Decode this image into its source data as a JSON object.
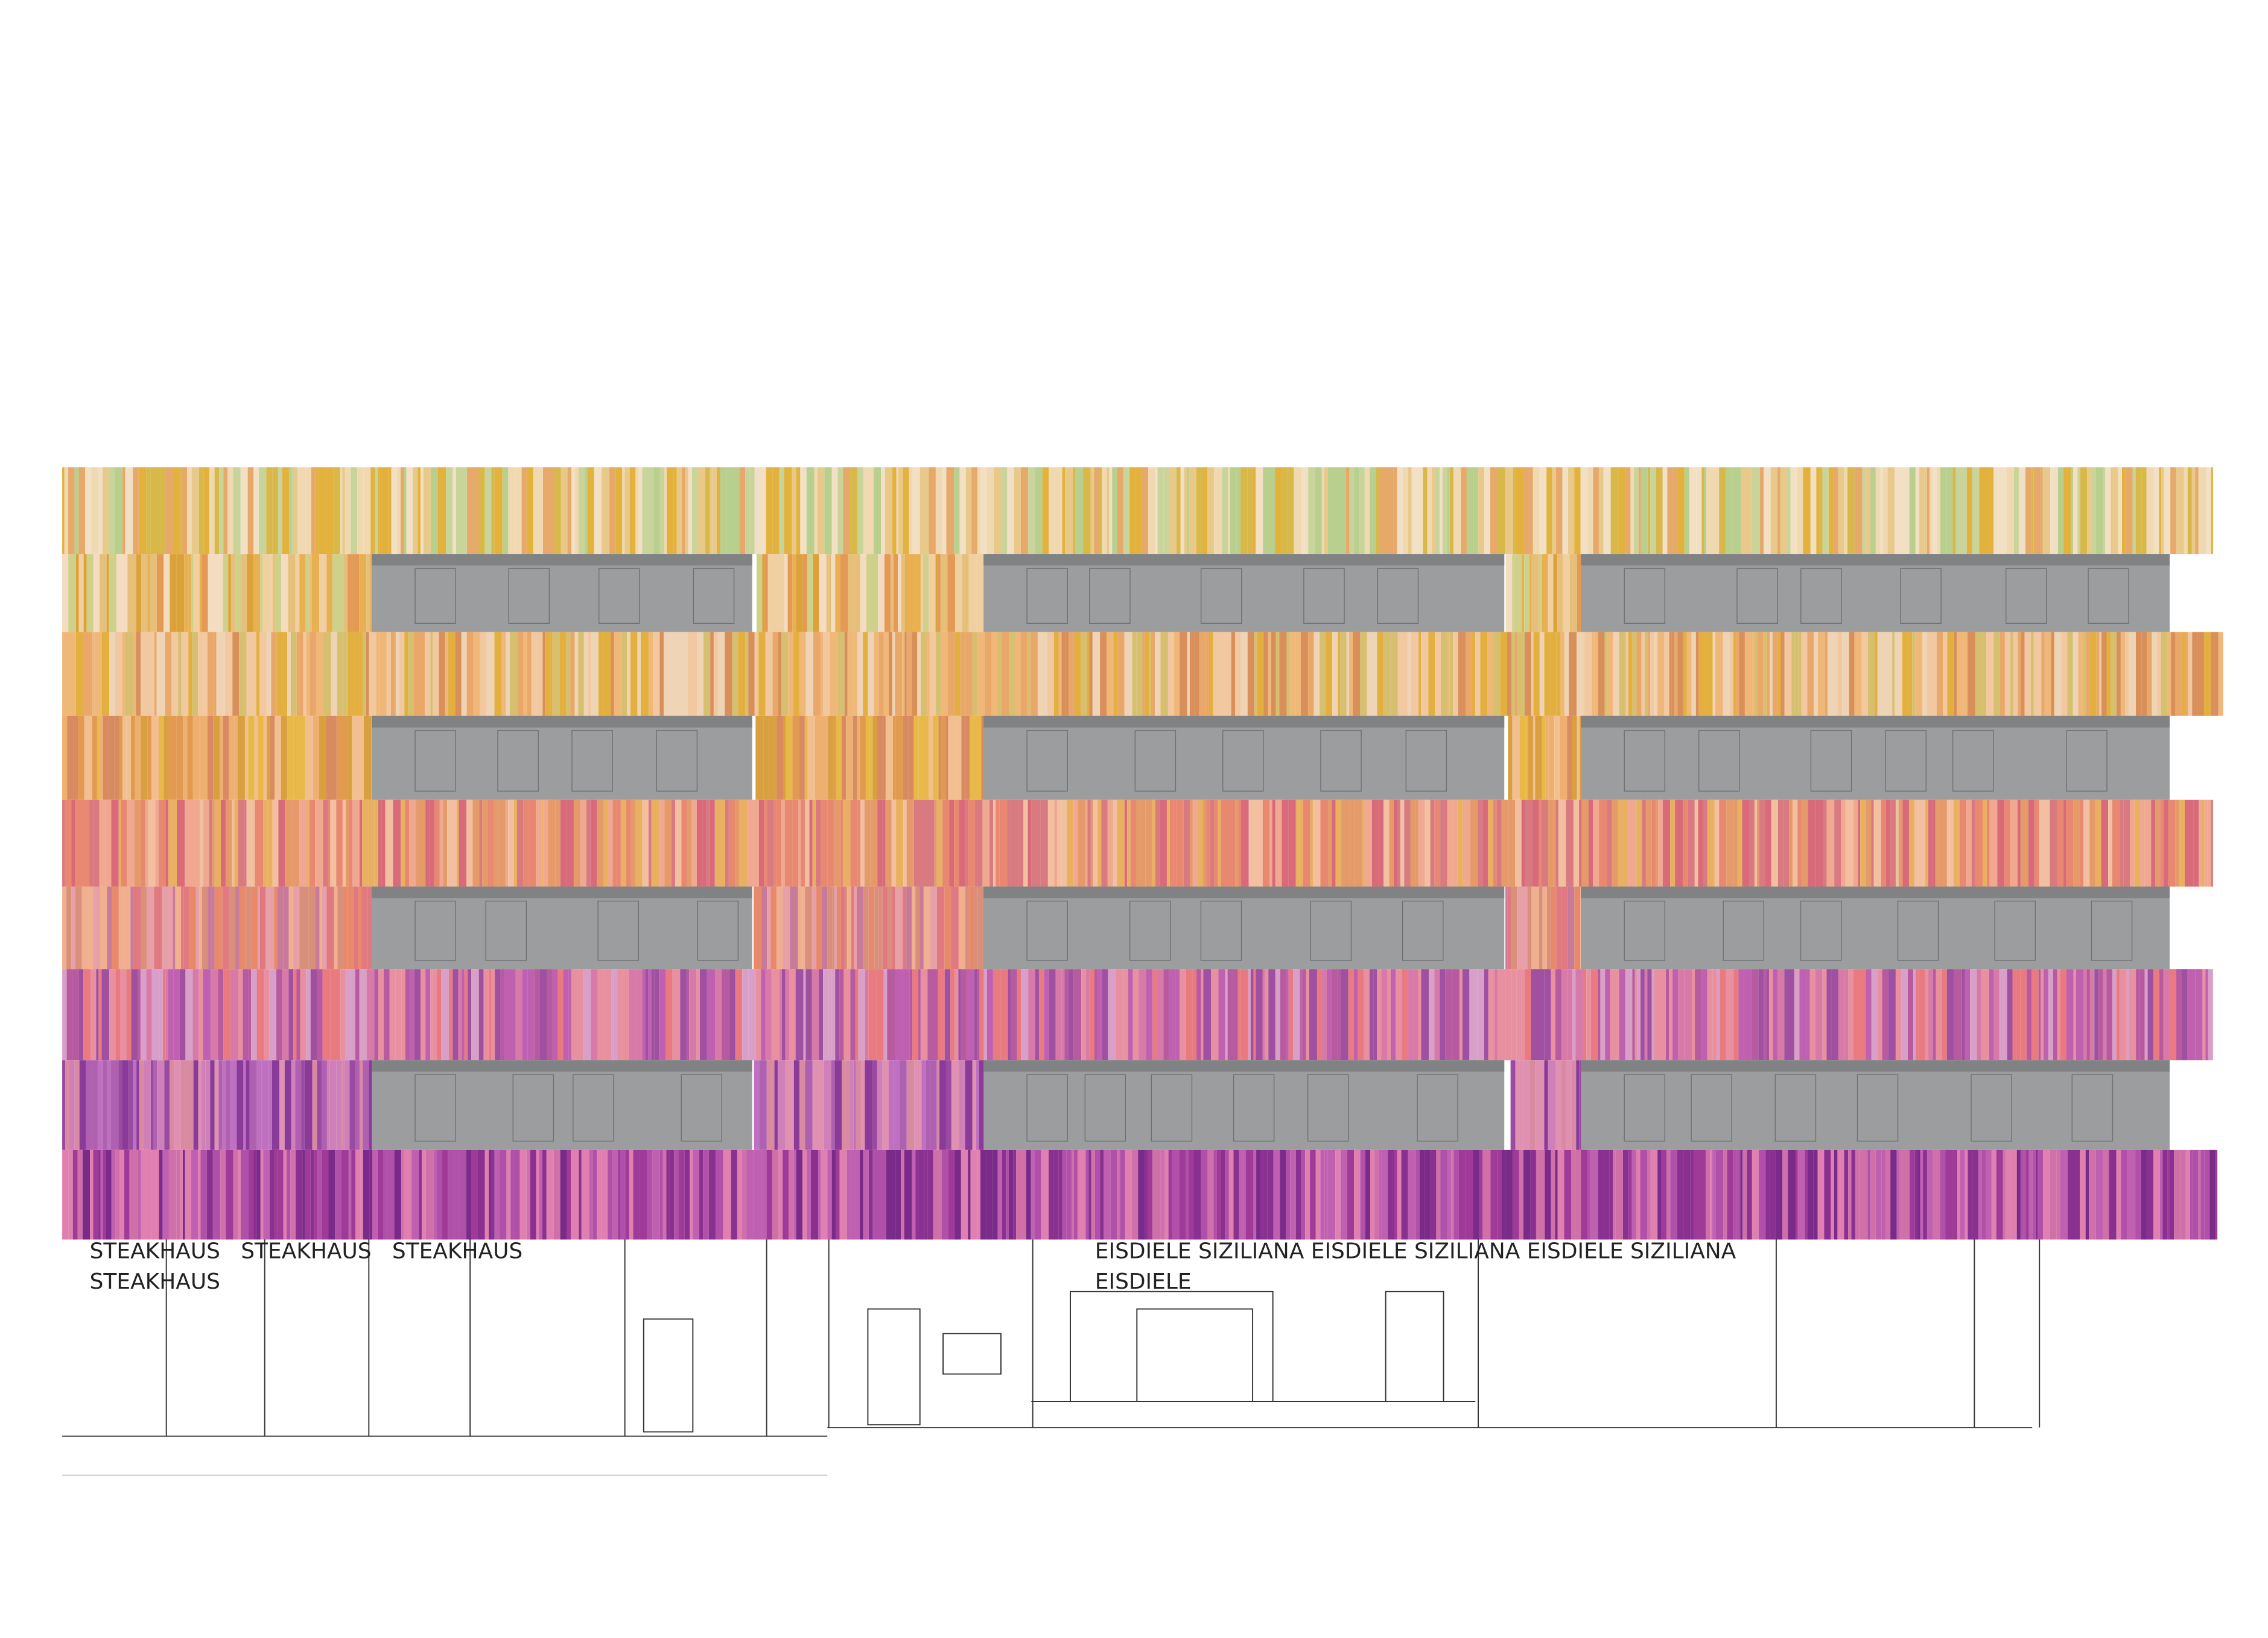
{
  "signs": {
    "steakhaus": {
      "line1": "STEAKHAUS   STEAKHAUS   STEAKHAUS",
      "line2": "STEAKHAUS"
    },
    "eisdiele": {
      "line1": "EISDIELE SIZILIANA EISDIELE SIZILIANA EISDIELE SIZILIANA",
      "line2": "EISDIELE"
    }
  }
}
